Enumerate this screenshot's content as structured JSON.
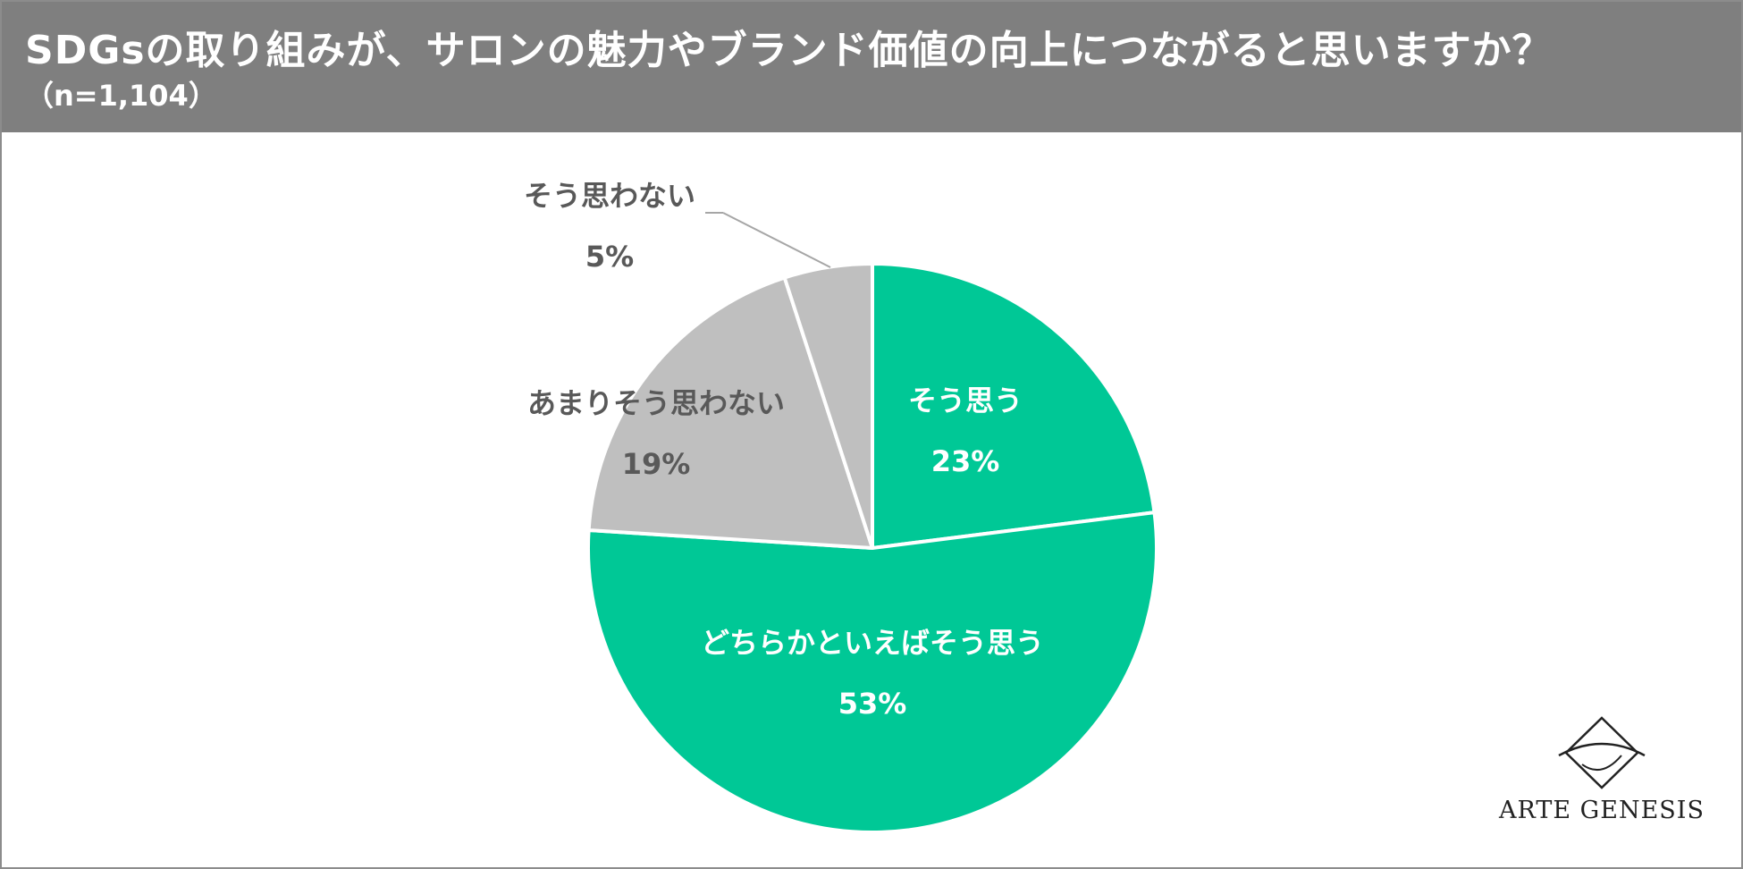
{
  "header": {
    "title": "SDGsの取り組みが、サロンの魅力やブランド価値の向上につながると思いますか？",
    "subtitle": "（n=1,104）"
  },
  "chart_data": {
    "type": "pie",
    "title": "SDGsの取り組みが、サロンの魅力やブランド価値の向上につながると思いますか？",
    "subtitle": "（n=1,104）",
    "slices": [
      {
        "label": "そう思う",
        "value": 23,
        "value_label": "23%",
        "color": "#00c896"
      },
      {
        "label": "どちらかといえばそう思う",
        "value": 53,
        "value_label": "53%",
        "color": "#00c896"
      },
      {
        "label": "あまりそう思わない",
        "value": 19,
        "value_label": "19%",
        "color": "#bfbfbf"
      },
      {
        "label": "そう思わない",
        "value": 5,
        "value_label": "5%",
        "color": "#bfbfbf"
      }
    ],
    "start_angle": "12 o'clock",
    "direction": "clockwise",
    "slice_order": "largest-to-last",
    "legend": "none",
    "data_labels": true
  },
  "colors": {
    "header_bg": "#7f7f7f",
    "agree": "#00c896",
    "disagree": "#bfbfbf",
    "label_dark": "#595959",
    "label_light": "#ffffff"
  },
  "logo": {
    "text": "ARTE GENESIS"
  }
}
